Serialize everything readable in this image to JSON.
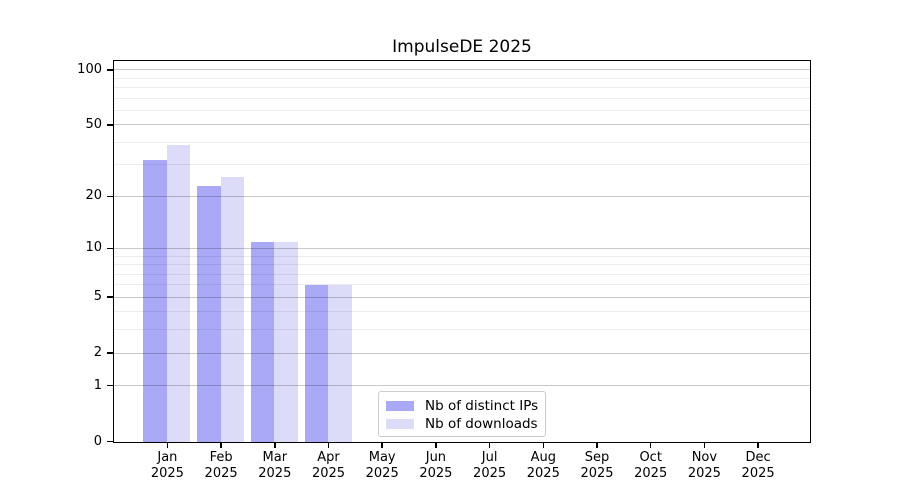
{
  "chart_data": {
    "type": "bar",
    "title": "ImpulseDE 2025",
    "year_label": "2025",
    "categories": [
      "Jan",
      "Feb",
      "Mar",
      "Apr",
      "May",
      "Jun",
      "Jul",
      "Aug",
      "Sep",
      "Oct",
      "Nov",
      "Dec"
    ],
    "series": [
      {
        "name": "Nb of distinct IPs",
        "color": "#a9a9f7",
        "values": [
          32,
          23,
          11,
          6,
          0,
          0,
          0,
          0,
          0,
          0,
          0,
          0
        ]
      },
      {
        "name": "Nb of downloads",
        "color": "#dcdcf8",
        "values": [
          39,
          26,
          11,
          6,
          0,
          0,
          0,
          0,
          0,
          0,
          0,
          0
        ]
      }
    ],
    "yscale": "log10(value+1)",
    "yticks_major": [
      0,
      1,
      2,
      5,
      10,
      20,
      50,
      100
    ],
    "yticks_minor": [
      3,
      4,
      6,
      7,
      8,
      9,
      30,
      40,
      60,
      70,
      80,
      90
    ],
    "ylim": [
      0,
      111
    ],
    "grid": "horizontal-only",
    "legend_position": "lower-center"
  },
  "colors": {
    "background": "#ffffff",
    "axis_spine": "#000000",
    "grid_major": "#c9c9c9",
    "grid_minor": "#ececec",
    "legend_border": "#cccccc",
    "bar_distinct_ips": "#a9a9f7",
    "bar_downloads": "#dcdcf8",
    "text": "#000000"
  }
}
